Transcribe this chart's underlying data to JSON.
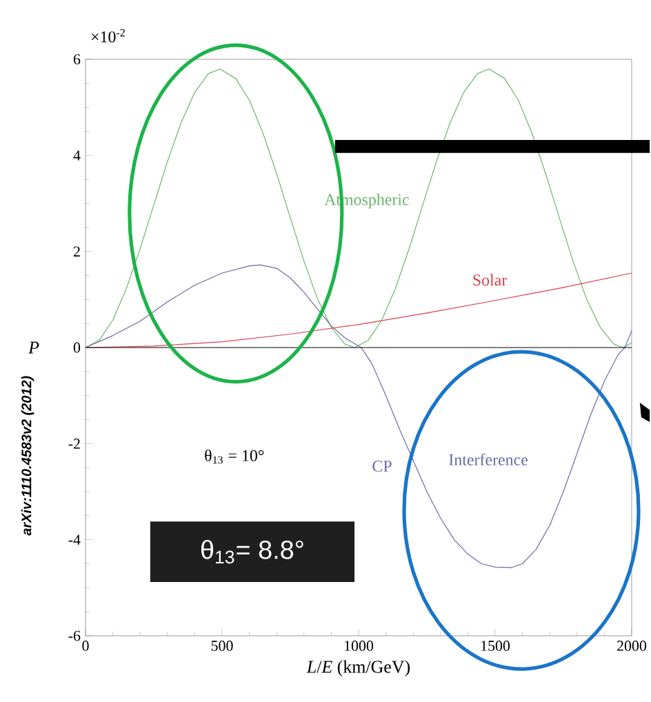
{
  "chart_data": {
    "type": "line",
    "xlabel": "*L*/*E* (km/GeV)",
    "ylabel": "*P*",
    "xlim": [
      0,
      2000
    ],
    "ylim": [
      -6,
      6
    ],
    "xticks": [
      0,
      500,
      1000,
      1500,
      2000
    ],
    "yticks": [
      -6,
      -4,
      -2,
      0,
      2,
      4,
      6
    ],
    "ref_lines": [
      {
        "axis": "y",
        "value": 0,
        "color": "#000000"
      }
    ],
    "series": [
      {
        "name": "Atmospheric",
        "color": "#6ab56a",
        "x": [
          0,
          50,
          100,
          150,
          200,
          250,
          300,
          350,
          400,
          450,
          492,
          550,
          600,
          650,
          700,
          750,
          800,
          850,
          900,
          950,
          985,
          1035,
          1085,
          1135,
          1185,
          1235,
          1285,
          1335,
          1385,
          1435,
          1477,
          1535,
          1585,
          1635,
          1685,
          1735,
          1785,
          1835,
          1885,
          1935,
          1970,
          2000
        ],
        "values": [
          0,
          0.15,
          0.57,
          1.23,
          2.06,
          2.97,
          3.87,
          4.68,
          5.31,
          5.7,
          5.8,
          5.6,
          5.15,
          4.46,
          3.62,
          2.7,
          1.8,
          1.01,
          0.42,
          0.07,
          0,
          0.15,
          0.57,
          1.23,
          2.06,
          2.97,
          3.87,
          4.68,
          5.31,
          5.7,
          5.8,
          5.6,
          5.15,
          4.46,
          3.62,
          2.7,
          1.8,
          1.01,
          0.42,
          0.07,
          0,
          0.1
        ]
      },
      {
        "name": "Solar",
        "color": "#d9404a",
        "x": [
          0,
          250,
          500,
          750,
          1000,
          1250,
          1500,
          1750,
          2000
        ],
        "values": [
          0,
          0.03,
          0.12,
          0.28,
          0.48,
          0.72,
          0.98,
          1.25,
          1.55
        ]
      },
      {
        "color": "#6a6aa8",
        "x": [
          0,
          100,
          200,
          300,
          400,
          500,
          600,
          640,
          700,
          750,
          800,
          850,
          900,
          950,
          1010,
          1050,
          1100,
          1150,
          1200,
          1250,
          1300,
          1350,
          1400,
          1450,
          1500,
          1560,
          1600,
          1650,
          1700,
          1750,
          1800,
          1850,
          1900,
          1950,
          1975,
          2000
        ],
        "values": [
          0,
          0.25,
          0.55,
          0.95,
          1.3,
          1.55,
          1.7,
          1.72,
          1.65,
          1.45,
          1.15,
          0.8,
          0.45,
          0.2,
          0,
          -0.35,
          -1.0,
          -1.7,
          -2.35,
          -3.0,
          -3.55,
          -4.0,
          -4.3,
          -4.5,
          -4.57,
          -4.58,
          -4.5,
          -4.2,
          -3.7,
          -3.0,
          -2.2,
          -1.4,
          -0.7,
          -0.15,
          0,
          0.35
        ]
      }
    ],
    "annotations": [
      "×10$^{-2}$",
      "CP",
      "Interference",
      "θ$_{13}$ = 10°",
      "θ$_{13}$= 8.8°",
      "arXiv:1110.4583v2 (2012)"
    ]
  }
}
